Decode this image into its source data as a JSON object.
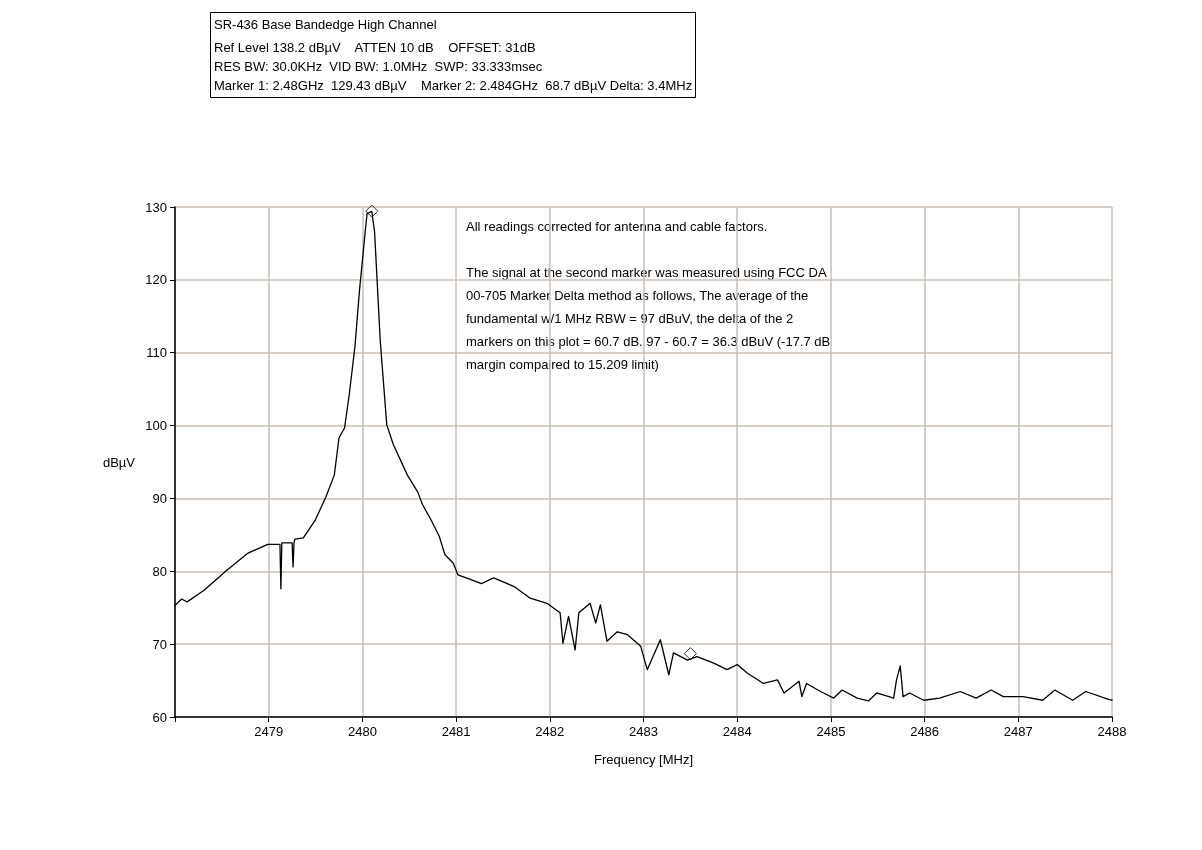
{
  "chart_data": {
    "type": "line",
    "title": "SR-436 Base Bandedge High Channel",
    "subtitle": "Ref Level 138.2 dBµV    ATTEN 10 dB    OFFSET: 31dB\nRES BW: 30.0KHz  VID BW: 1.0MHz  SWP: 33.333msec\nMarker 1: 2.48GHz  129.43 dBµV    Marker 2: 2.484GHz  68.7 dBµV Delta: 3.4MHz",
    "xlabel": "Frequency [MHz]",
    "ylabel": "dBµV",
    "annotations": [
      "All readings corrected for antenna and cable factors.",
      "The signal at the second marker was measured using FCC DA\n00-705 Marker Delta method as follows, The average of the\nfundamental w/1 MHz RBW = 97 dBuV, the delta of the 2\nmarkers on this plot = 60.7 dB. 97 - 60.7 = 36.3 dBuV (-17.7 dB\nmargin compaired to 15.209 limit)"
    ],
    "xlim": [
      2478,
      2488
    ],
    "xticks": [
      {
        "value": 2478,
        "label": null
      },
      2479,
      2480,
      2481,
      2482,
      2483,
      2484,
      2485,
      2486,
      2487,
      2488
    ],
    "ylim": [
      60,
      130
    ],
    "yticks": [
      60,
      70,
      80,
      90,
      100,
      110,
      120,
      130
    ],
    "grid": true,
    "line_style": "solid",
    "series": [
      {
        "color": "#000000",
        "marker": "none",
        "x": [
          2478.0,
          2478.07,
          2478.13,
          2478.31,
          2478.56,
          2478.78,
          2478.99,
          2479.1,
          2479.12,
          2479.13,
          2479.14,
          2479.25,
          2479.26,
          2479.27,
          2479.28,
          2479.37,
          2479.5,
          2479.61,
          2479.7,
          2479.75,
          2479.81,
          2479.86,
          2479.92,
          2479.97,
          2480.03,
          2480.05,
          2480.1,
          2480.13,
          2480.19,
          2480.26,
          2480.33,
          2480.48,
          2480.59,
          2480.64,
          2480.73,
          2480.82,
          2480.88,
          2480.97,
          2481.02,
          2481.13,
          2481.27,
          2481.4,
          2481.62,
          2481.79,
          2481.97,
          2482.11,
          2482.14,
          2482.2,
          2482.27,
          2482.31,
          2482.43,
          2482.49,
          2482.54,
          2482.61,
          2482.72,
          2482.83,
          2482.97,
          2483.04,
          2483.18,
          2483.27,
          2483.32,
          2483.47,
          2483.57,
          2483.75,
          2483.89,
          2484.0,
          2484.11,
          2484.28,
          2484.43,
          2484.5,
          2484.66,
          2484.69,
          2484.74,
          2484.89,
          2485.03,
          2485.12,
          2485.28,
          2485.4,
          2485.49,
          2485.67,
          2485.7,
          2485.74,
          2485.77,
          2485.84,
          2485.99,
          2486.16,
          2486.38,
          2486.55,
          2486.71,
          2486.84,
          2487.05,
          2487.26,
          2487.39,
          2487.58,
          2487.72,
          2487.97,
          2488.0
        ],
        "values": [
          75.3,
          76.2,
          75.8,
          77.4,
          80.2,
          82.5,
          83.7,
          83.7,
          83.7,
          77.6,
          83.9,
          83.9,
          80.6,
          83.9,
          84.4,
          84.6,
          87.1,
          90.2,
          93.2,
          98.3,
          99.7,
          104.3,
          110.8,
          118.7,
          126.6,
          129.1,
          129.4,
          126.6,
          111.7,
          100.1,
          97.4,
          93.2,
          90.9,
          89.2,
          87.1,
          84.8,
          82.3,
          81.1,
          79.5,
          79.0,
          78.3,
          79.1,
          77.9,
          76.3,
          75.6,
          74.3,
          70.1,
          73.8,
          69.2,
          74.3,
          75.6,
          72.9,
          75.4,
          70.4,
          71.7,
          71.3,
          69.7,
          66.5,
          70.6,
          65.8,
          68.8,
          67.8,
          68.3,
          67.4,
          66.5,
          67.2,
          66.0,
          64.6,
          65.1,
          63.3,
          64.9,
          62.8,
          64.6,
          63.5,
          62.6,
          63.7,
          62.6,
          62.2,
          63.3,
          62.6,
          65.1,
          67.0,
          62.8,
          63.3,
          62.3,
          62.6,
          63.5,
          62.6,
          63.7,
          62.8,
          62.8,
          62.3,
          63.7,
          62.3,
          63.5,
          62.4,
          62.3
        ]
      },
      {
        "type": "scatter",
        "color": "#000000",
        "marker": "diamond",
        "x": [
          2480.1,
          2483.5
        ],
        "values": [
          129.43,
          68.7
        ]
      }
    ]
  }
}
